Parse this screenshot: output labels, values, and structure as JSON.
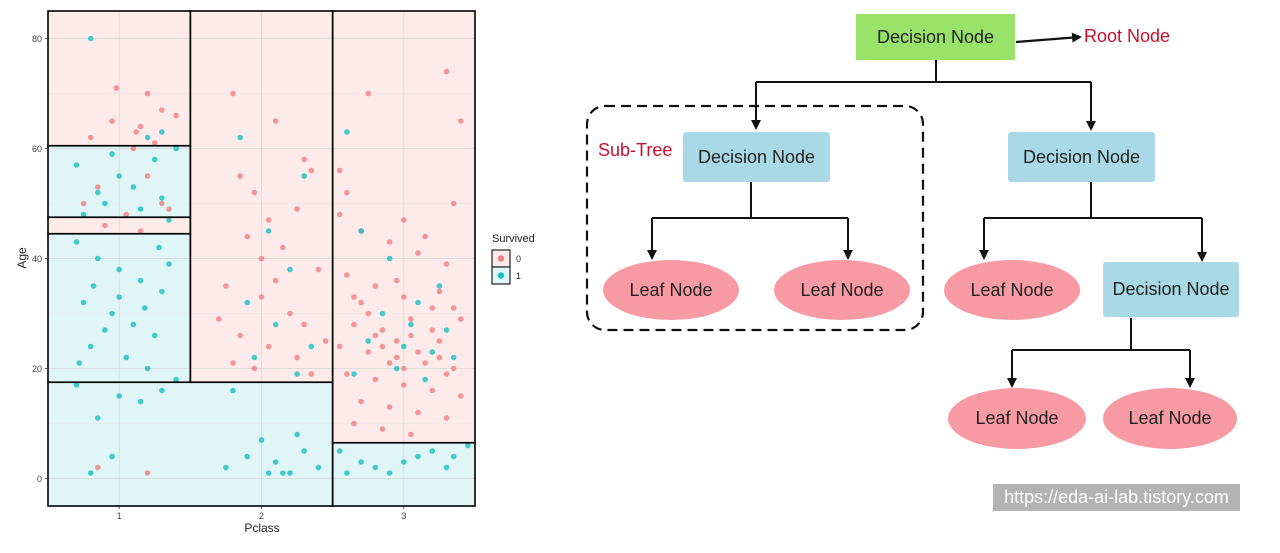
{
  "chart_data": {
    "type": "scatter",
    "xlabel": "Pclass",
    "ylabel": "Age",
    "categories": [
      "1",
      "2",
      "3"
    ],
    "yticks": [
      0,
      20,
      40,
      60,
      80
    ],
    "ylim": [
      -5,
      85
    ],
    "grid": true,
    "legend": {
      "title": "Survived",
      "entries": [
        "0",
        "1"
      ],
      "placement": "right"
    },
    "colors": {
      "0": "#f08080",
      "1": "#19bfc0",
      "region0": "#fdebeb",
      "region1": "#e0f5f6"
    },
    "regions": [
      {
        "pclass": [
          0.5,
          1.5
        ],
        "age": [
          60.5,
          85
        ],
        "survived": 0
      },
      {
        "pclass": [
          0.5,
          1.5
        ],
        "age": [
          47.5,
          60.5
        ],
        "survived": 1
      },
      {
        "pclass": [
          0.5,
          1.5
        ],
        "age": [
          44.5,
          47.5
        ],
        "survived": 0
      },
      {
        "pclass": [
          0.5,
          1.5
        ],
        "age": [
          17.5,
          44.5
        ],
        "survived": 1
      },
      {
        "pclass": [
          1.5,
          2.5
        ],
        "age": [
          17.5,
          85
        ],
        "survived": 0
      },
      {
        "pclass": [
          0.5,
          2.5
        ],
        "age": [
          -5,
          17.5
        ],
        "survived": 1
      },
      {
        "pclass": [
          2.5,
          3.5
        ],
        "age": [
          6.5,
          85
        ],
        "survived": 0
      },
      {
        "pclass": [
          2.5,
          3.5
        ],
        "age": [
          -5,
          6.5
        ],
        "survived": 1
      }
    ],
    "series": [
      {
        "name": "0",
        "points": [
          [
            0.85,
            2
          ],
          [
            1.2,
            1
          ],
          [
            0.95,
            65
          ],
          [
            1.1,
            60
          ],
          [
            1.3,
            67
          ],
          [
            1.2,
            70
          ],
          [
            0.98,
            71
          ],
          [
            1.15,
            64
          ],
          [
            0.8,
            62
          ],
          [
            1.25,
            61
          ],
          [
            1.12,
            63
          ],
          [
            1.4,
            66
          ],
          [
            0.75,
            50
          ],
          [
            1.05,
            48
          ],
          [
            1.3,
            50
          ],
          [
            0.9,
            46
          ],
          [
            1.2,
            55
          ],
          [
            1.35,
            49
          ],
          [
            0.85,
            53
          ],
          [
            1.15,
            45
          ],
          [
            1.8,
            70
          ],
          [
            2.1,
            65
          ],
          [
            2.3,
            58
          ],
          [
            1.85,
            55
          ],
          [
            2.25,
            49
          ],
          [
            1.95,
            52
          ],
          [
            2.35,
            56
          ],
          [
            2.05,
            47
          ],
          [
            1.9,
            44
          ],
          [
            2.15,
            42
          ],
          [
            2.4,
            38
          ],
          [
            1.75,
            35
          ],
          [
            2.0,
            33
          ],
          [
            2.2,
            30
          ],
          [
            2.3,
            28
          ],
          [
            1.85,
            26
          ],
          [
            2.05,
            24
          ],
          [
            2.25,
            22
          ],
          [
            1.95,
            20
          ],
          [
            2.35,
            19
          ],
          [
            1.8,
            21
          ],
          [
            2.1,
            36
          ],
          [
            2.45,
            25
          ],
          [
            1.7,
            29
          ],
          [
            2.0,
            40
          ],
          [
            2.55,
            48
          ],
          [
            2.7,
            45
          ],
          [
            2.9,
            43
          ],
          [
            3.1,
            41
          ],
          [
            3.3,
            39
          ],
          [
            2.6,
            37
          ],
          [
            2.8,
            35
          ],
          [
            3.0,
            33
          ],
          [
            3.2,
            31
          ],
          [
            3.4,
            29
          ],
          [
            2.65,
            28
          ],
          [
            2.85,
            27
          ],
          [
            3.05,
            26
          ],
          [
            3.25,
            25
          ],
          [
            2.55,
            24
          ],
          [
            2.75,
            23
          ],
          [
            2.95,
            22
          ],
          [
            3.15,
            21
          ],
          [
            3.35,
            20
          ],
          [
            2.6,
            19
          ],
          [
            2.8,
            18
          ],
          [
            3.0,
            17
          ],
          [
            3.2,
            16
          ],
          [
            3.4,
            15
          ],
          [
            2.7,
            14
          ],
          [
            2.9,
            13
          ],
          [
            3.1,
            12
          ],
          [
            3.3,
            11
          ],
          [
            2.65,
            10
          ],
          [
            2.85,
            9
          ],
          [
            3.05,
            8
          ],
          [
            2.75,
            30
          ],
          [
            3.25,
            34
          ],
          [
            2.95,
            36
          ],
          [
            3.15,
            44
          ],
          [
            2.55,
            56
          ],
          [
            2.75,
            70
          ],
          [
            3.3,
            74
          ],
          [
            3.4,
            65
          ],
          [
            3.35,
            50
          ],
          [
            2.6,
            52
          ],
          [
            3.0,
            47
          ],
          [
            2.8,
            26
          ],
          [
            3.1,
            23
          ],
          [
            2.9,
            21
          ],
          [
            3.2,
            27
          ],
          [
            2.7,
            32
          ],
          [
            3.3,
            19
          ],
          [
            3.0,
            20
          ],
          [
            2.85,
            24
          ],
          [
            3.05,
            29
          ],
          [
            3.25,
            22
          ],
          [
            2.65,
            33
          ],
          [
            3.35,
            31
          ],
          [
            2.95,
            25
          ]
        ]
      },
      {
        "name": "1",
        "points": [
          [
            0.8,
            80
          ],
          [
            1.2,
            62
          ],
          [
            1.3,
            63
          ],
          [
            1.25,
            58
          ],
          [
            1.4,
            60
          ],
          [
            0.7,
            57
          ],
          [
            0.85,
            52
          ],
          [
            1.0,
            55
          ],
          [
            1.15,
            49
          ],
          [
            1.3,
            51
          ],
          [
            0.75,
            48
          ],
          [
            0.95,
            59
          ],
          [
            1.1,
            53
          ],
          [
            1.35,
            47
          ],
          [
            0.9,
            50
          ],
          [
            0.7,
            43
          ],
          [
            0.85,
            40
          ],
          [
            1.0,
            38
          ],
          [
            1.15,
            36
          ],
          [
            1.3,
            34
          ],
          [
            0.75,
            32
          ],
          [
            0.95,
            30
          ],
          [
            1.1,
            28
          ],
          [
            1.25,
            26
          ],
          [
            0.8,
            24
          ],
          [
            1.05,
            22
          ],
          [
            1.2,
            20
          ],
          [
            1.4,
            18
          ],
          [
            0.72,
            21
          ],
          [
            0.9,
            27
          ],
          [
            1.35,
            39
          ],
          [
            1.0,
            33
          ],
          [
            0.82,
            35
          ],
          [
            1.18,
            31
          ],
          [
            1.28,
            42
          ],
          [
            0.7,
            17
          ],
          [
            0.85,
            11
          ],
          [
            1.0,
            15
          ],
          [
            1.15,
            14
          ],
          [
            0.95,
            4
          ],
          [
            0.8,
            1
          ],
          [
            1.3,
            16
          ],
          [
            1.85,
            62
          ],
          [
            2.3,
            55
          ],
          [
            2.05,
            45
          ],
          [
            2.2,
            38
          ],
          [
            1.9,
            32
          ],
          [
            2.1,
            28
          ],
          [
            2.35,
            24
          ],
          [
            1.95,
            22
          ],
          [
            2.25,
            19
          ],
          [
            1.8,
            16
          ],
          [
            1.9,
            4
          ],
          [
            2.0,
            7
          ],
          [
            2.1,
            3
          ],
          [
            2.2,
            1
          ],
          [
            2.3,
            5
          ],
          [
            2.05,
            1
          ],
          [
            2.4,
            2
          ],
          [
            1.75,
            2
          ],
          [
            2.15,
            1
          ],
          [
            2.25,
            8
          ],
          [
            2.6,
            63
          ],
          [
            2.7,
            45
          ],
          [
            2.9,
            40
          ],
          [
            3.1,
            32
          ],
          [
            3.3,
            27
          ],
          [
            2.75,
            25
          ],
          [
            2.95,
            20
          ],
          [
            3.15,
            18
          ],
          [
            3.35,
            22
          ],
          [
            2.85,
            30
          ],
          [
            3.05,
            28
          ],
          [
            3.25,
            35
          ],
          [
            2.65,
            19
          ],
          [
            3.0,
            24
          ],
          [
            3.2,
            23
          ],
          [
            2.55,
            5
          ],
          [
            2.7,
            3
          ],
          [
            2.9,
            1
          ],
          [
            3.1,
            4
          ],
          [
            3.3,
            2
          ],
          [
            3.45,
            6
          ],
          [
            2.8,
            2
          ],
          [
            3.2,
            5
          ],
          [
            3.0,
            3
          ],
          [
            2.6,
            1
          ],
          [
            3.35,
            4
          ]
        ]
      }
    ]
  },
  "tree": {
    "root": "Decision Node",
    "root_label": "Root Node",
    "subtree_label": "Sub-Tree",
    "left_decision": "Decision Node",
    "right_decision": "Decision Node",
    "right_inner_decision": "Decision Node",
    "leaf_1": "Leaf Node",
    "leaf_2": "Leaf Node",
    "leaf_3": "Leaf Node",
    "leaf_4": "Leaf Node",
    "leaf_5": "Leaf Node"
  },
  "watermark": "https://eda-ai-lab.tistory.com"
}
